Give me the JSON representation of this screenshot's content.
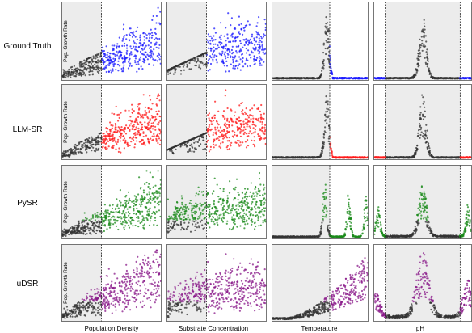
{
  "figure": {
    "row_labels": [
      "Ground Truth",
      "LLM-SR",
      "PySR",
      "uDSR"
    ],
    "col_labels": [
      "Population Density",
      "Substrate Concentration",
      "Temperature",
      "pH"
    ],
    "ylabel": "Pop. Growth Rate"
  },
  "colors": {
    "Ground Truth": "#1a1aff",
    "LLM-SR": "#ff1a1a",
    "PySR": "#1a8a1a",
    "uDSR": "#8a1a8a",
    "in_domain": "#333333",
    "shaded_region": "#ececec"
  },
  "chart_data": {
    "type": "scatter",
    "layout": "grid 4 rows x 4 columns",
    "rows": [
      "Ground Truth",
      "LLM-SR",
      "PySR",
      "uDSR"
    ],
    "columns": [
      "Population Density",
      "Substrate Concentration",
      "Temperature",
      "pH"
    ],
    "ylabel": "Pop. Growth Rate",
    "grid": false,
    "tick_labels": false,
    "shaded_region": "in-domain range shaded gray with dashed boundary; out-of-domain points colored by method",
    "series": [
      {
        "name": "Ground Truth",
        "color": "#1a1aff"
      },
      {
        "name": "LLM-SR",
        "color": "#ff1a1a"
      },
      {
        "name": "PySR",
        "color": "#1a8a1a"
      },
      {
        "name": "uDSR",
        "color": "#8a1a8a"
      }
    ],
    "panel_shapes": {
      "Population Density": "scatter rising with x; spread increases",
      "Substrate Concentration": "scatter saturating with x; wide spread",
      "Temperature": "Ground Truth/LLM-SR: single sharp peak near right boundary then drop; PySR: repeating sharp peaks; uDSR: monotonic rise",
      "pH": "Ground Truth/LLM-SR: single sharp peak at center; PySR: periodic peaks; uDSR: broad peaks at center and edges"
    },
    "regions": {
      "Population Density": {
        "shaded": [
          0,
          0.4
        ]
      },
      "Substrate Concentration": {
        "shaded": [
          0,
          0.4
        ]
      },
      "Temperature": {
        "shaded": [
          0,
          0.6
        ]
      },
      "pH": {
        "shaded": [
          0.12,
          0.88
        ]
      }
    }
  }
}
